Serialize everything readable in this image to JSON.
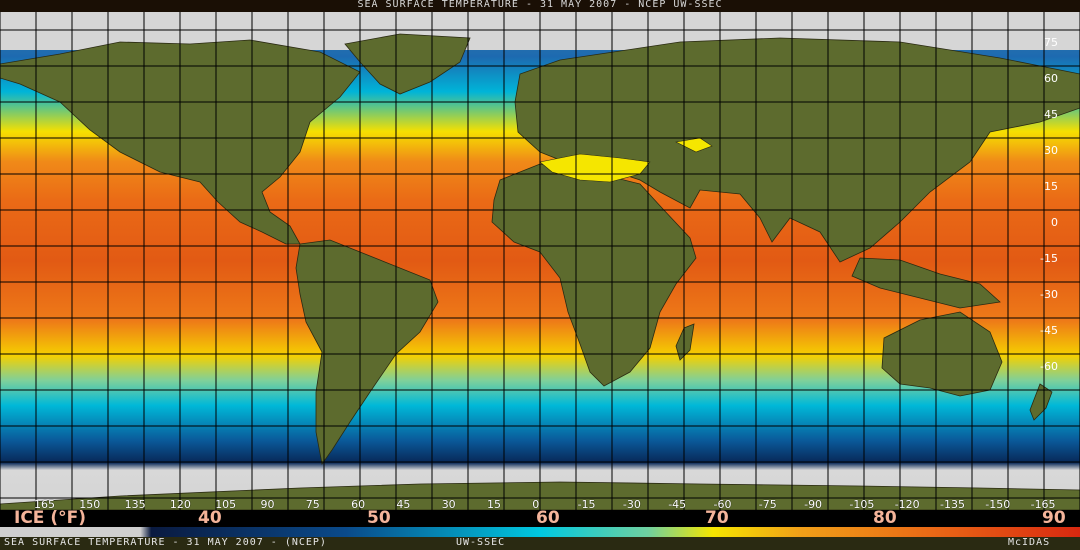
{
  "header": {
    "title": "SEA SURFACE TEMPERATURE - 31 MAY 2007 - NCEP UW-SSEC"
  },
  "map": {
    "lat_labels": [
      "75",
      "60",
      "45",
      "30",
      "15",
      "0",
      "-15",
      "-30",
      "-45",
      "-60"
    ],
    "lon_labels": [
      "165",
      "150",
      "135",
      "120",
      "105",
      "90",
      "75",
      "60",
      "45",
      "30",
      "15",
      "0",
      "-15",
      "-30",
      "-45",
      "-60",
      "-75",
      "-90",
      "-105",
      "-120",
      "-135",
      "-150",
      "-165"
    ]
  },
  "legend": {
    "ice_label": "ICE (°F)",
    "values": [
      "40",
      "50",
      "60",
      "70",
      "80",
      "90"
    ],
    "colors": {
      "ice": "#cfcfcf",
      "cold": "#0a2a6a",
      "cool": "#00c8e0",
      "mild": "#f5e600",
      "warm": "#f07818",
      "hot": "#d82810"
    }
  },
  "footer": {
    "left": "SEA SURFACE TEMPERATURE - 31 MAY 2007 - (NCEP)",
    "center": "UW-SSEC",
    "right": "McIDAS"
  }
}
